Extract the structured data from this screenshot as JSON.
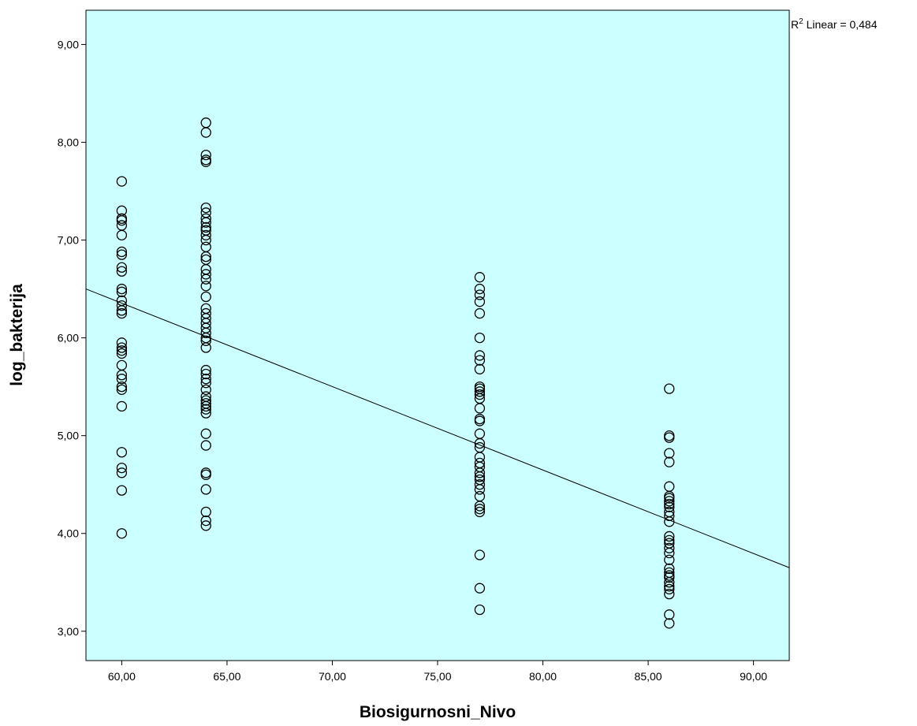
{
  "chart_data": {
    "type": "scatter",
    "xlabel": "Biosigurnosni_Nivo",
    "ylabel": "log_bakterija",
    "xlim": [
      58.3,
      91.7
    ],
    "ylim": [
      2.7,
      9.35
    ],
    "x_ticks": [
      60,
      65,
      70,
      75,
      80,
      85,
      90
    ],
    "x_tick_labels": [
      "60,00",
      "65,00",
      "70,00",
      "75,00",
      "80,00",
      "85,00",
      "90,00"
    ],
    "y_ticks": [
      3,
      4,
      5,
      6,
      7,
      8,
      9
    ],
    "y_tick_labels": [
      "3,00",
      "4,00",
      "5,00",
      "6,00",
      "7,00",
      "8,00",
      "9,00"
    ],
    "grid": false,
    "background_color": "#ccffff",
    "marker": "hollow-circle",
    "marker_color": "#000000",
    "series": [
      {
        "points": [
          {
            "x": 60,
            "ys": [
              7.6,
              7.3,
              7.22,
              7.2,
              7.15,
              7.05,
              6.88,
              6.85,
              6.72,
              6.68,
              6.5,
              6.47,
              6.38,
              6.33,
              6.28,
              6.25,
              5.95,
              5.9,
              5.87,
              5.84,
              5.72,
              5.62,
              5.58,
              5.5,
              5.47,
              5.3,
              4.83,
              4.67,
              4.62,
              4.44,
              4.0
            ]
          },
          {
            "x": 64,
            "ys": [
              8.2,
              8.1,
              7.87,
              7.82,
              7.8,
              7.33,
              7.28,
              7.22,
              7.18,
              7.13,
              7.1,
              7.05,
              7.0,
              6.93,
              6.83,
              6.8,
              6.7,
              6.65,
              6.6,
              6.53,
              6.42,
              6.3,
              6.25,
              6.2,
              6.15,
              6.1,
              6.05,
              6.0,
              5.97,
              5.9,
              5.67,
              5.63,
              5.58,
              5.54,
              5.47,
              5.4,
              5.36,
              5.33,
              5.3,
              5.27,
              5.23,
              5.02,
              4.9,
              4.62,
              4.6,
              4.45,
              4.22,
              4.13,
              4.08
            ]
          },
          {
            "x": 77,
            "ys": [
              6.62,
              6.5,
              6.44,
              6.37,
              6.25,
              6.0,
              5.82,
              5.77,
              5.68,
              5.5,
              5.48,
              5.45,
              5.42,
              5.38,
              5.28,
              5.17,
              5.15,
              5.02,
              4.92,
              4.88,
              4.78,
              4.72,
              4.68,
              4.62,
              4.58,
              4.55,
              4.5,
              4.45,
              4.38,
              4.28,
              4.25,
              4.22,
              3.78,
              3.44,
              3.22
            ]
          },
          {
            "x": 86,
            "ys": [
              5.48,
              5.0,
              4.98,
              4.82,
              4.73,
              4.48,
              4.38,
              4.36,
              4.33,
              4.3,
              4.27,
              4.22,
              4.18,
              4.12,
              3.97,
              3.93,
              3.9,
              3.85,
              3.8,
              3.73,
              3.64,
              3.6,
              3.57,
              3.55,
              3.5,
              3.46,
              3.43,
              3.38,
              3.17,
              3.08
            ]
          }
        ]
      }
    ],
    "fit_line": {
      "type": "linear",
      "x": [
        58.3,
        91.7
      ],
      "y": [
        6.5,
        3.65
      ],
      "r2_label_prefix": "R",
      "r2_label_sup": "2",
      "r2_label_text": " Linear = 0,484"
    }
  }
}
